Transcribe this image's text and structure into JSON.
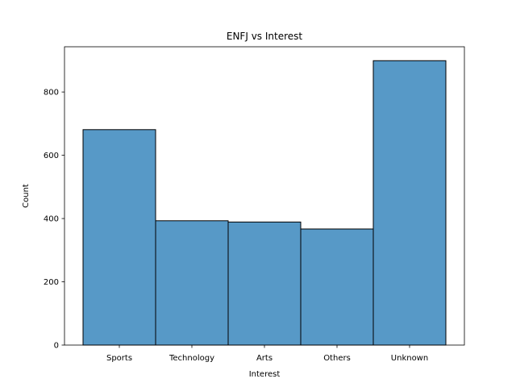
{
  "chart_data": {
    "type": "bar",
    "title": "ENFJ vs Interest",
    "xlabel": "Interest",
    "ylabel": "Count",
    "categories": [
      "Sports",
      "Technology",
      "Arts",
      "Others",
      "Unknown"
    ],
    "values": [
      681,
      393,
      389,
      367,
      899
    ],
    "ylim": [
      0,
      943
    ],
    "yticks": [
      0,
      200,
      400,
      600,
      800
    ],
    "bar_color": "#5799c7",
    "edge_color": "#000000",
    "grid": false,
    "legend": "none"
  }
}
